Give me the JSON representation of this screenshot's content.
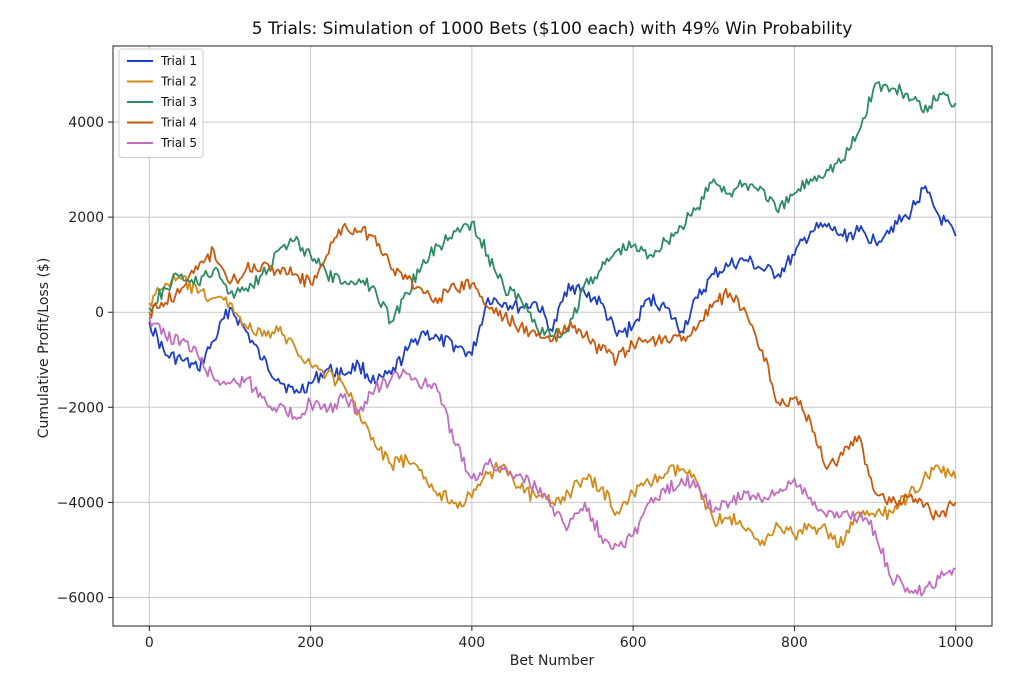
{
  "chart_data": {
    "type": "line",
    "title": "5 Trials: Simulation of 1000 Bets ($100 each) with 49% Win Probability",
    "xlabel": "Bet Number",
    "ylabel": "Cumulative Profit/Loss ($)",
    "xlim": [
      -45,
      1045
    ],
    "ylim": [
      -6600,
      5600
    ],
    "x_ticks": [
      0,
      200,
      400,
      600,
      800,
      1000
    ],
    "y_ticks": [
      -6000,
      -4000,
      -2000,
      0,
      2000,
      4000
    ],
    "x_tick_labels": [
      "0",
      "200",
      "400",
      "600",
      "800",
      "1000"
    ],
    "y_tick_labels": [
      "−6000",
      "−4000",
      "−2000",
      "0",
      "2000",
      "4000"
    ],
    "grid": true,
    "legend_position": "top-left",
    "series": [
      {
        "name": "Trial 1",
        "color": "#1f3fc0",
        "x": [
          0,
          20,
          40,
          60,
          80,
          100,
          120,
          140,
          160,
          180,
          200,
          220,
          240,
          260,
          280,
          300,
          320,
          340,
          360,
          380,
          400,
          420,
          440,
          460,
          480,
          500,
          520,
          540,
          560,
          580,
          600,
          620,
          640,
          660,
          680,
          700,
          720,
          740,
          760,
          780,
          800,
          820,
          840,
          860,
          880,
          900,
          920,
          940,
          960,
          980,
          1000
        ],
        "values": [
          -200,
          -900,
          -1000,
          -1200,
          -600,
          100,
          -400,
          -1000,
          -1400,
          -1700,
          -1500,
          -1200,
          -1300,
          -1100,
          -1500,
          -1300,
          -800,
          -400,
          -600,
          -700,
          -900,
          300,
          200,
          100,
          200,
          -400,
          600,
          400,
          200,
          -500,
          -300,
          300,
          100,
          -400,
          300,
          800,
          1000,
          1100,
          900,
          800,
          1200,
          1700,
          1800,
          1600,
          1700,
          1500,
          1800,
          2000,
          2600,
          2000,
          1600
        ]
      },
      {
        "name": "Trial 2",
        "color": "#d08c1a",
        "x": [
          0,
          20,
          40,
          60,
          80,
          100,
          120,
          140,
          160,
          180,
          200,
          220,
          240,
          260,
          280,
          300,
          320,
          340,
          360,
          380,
          400,
          420,
          440,
          460,
          480,
          500,
          520,
          540,
          560,
          580,
          600,
          620,
          640,
          660,
          680,
          700,
          720,
          740,
          760,
          780,
          800,
          820,
          840,
          860,
          880,
          900,
          920,
          940,
          960,
          980,
          1000
        ],
        "values": [
          200,
          600,
          700,
          400,
          300,
          200,
          -300,
          -500,
          -400,
          -700,
          -1100,
          -1300,
          -1500,
          -2100,
          -2800,
          -3200,
          -3100,
          -3500,
          -3800,
          -4000,
          -3900,
          -3400,
          -3200,
          -3700,
          -3900,
          -4000,
          -3800,
          -3500,
          -3700,
          -4200,
          -3800,
          -3600,
          -3400,
          -3300,
          -3600,
          -4400,
          -4300,
          -4600,
          -4800,
          -4500,
          -4700,
          -4500,
          -4600,
          -4900,
          -4200,
          -4300,
          -4200,
          -3900,
          -3500,
          -3300,
          -3500
        ]
      },
      {
        "name": "Trial 3",
        "color": "#2e8b62",
        "x": [
          0,
          20,
          40,
          60,
          80,
          100,
          120,
          140,
          160,
          180,
          200,
          220,
          240,
          260,
          280,
          300,
          320,
          340,
          360,
          380,
          400,
          420,
          440,
          460,
          480,
          500,
          520,
          540,
          560,
          580,
          600,
          620,
          640,
          660,
          680,
          700,
          720,
          740,
          760,
          780,
          800,
          820,
          840,
          860,
          880,
          900,
          920,
          940,
          960,
          980,
          1000
        ],
        "values": [
          100,
          500,
          800,
          600,
          900,
          400,
          500,
          800,
          1300,
          1500,
          1200,
          800,
          600,
          700,
          500,
          -200,
          400,
          1100,
          1400,
          1700,
          1900,
          1200,
          500,
          300,
          -300,
          -500,
          -400,
          600,
          900,
          1300,
          1400,
          1200,
          1500,
          1800,
          2200,
          2800,
          2500,
          2700,
          2600,
          2100,
          2500,
          2800,
          3000,
          3200,
          3800,
          4800,
          4700,
          4600,
          4200,
          4600,
          4400
        ]
      },
      {
        "name": "Trial 4",
        "color": "#c65a0e",
        "x": [
          0,
          20,
          40,
          60,
          80,
          100,
          120,
          140,
          160,
          180,
          200,
          220,
          240,
          260,
          280,
          300,
          320,
          340,
          360,
          380,
          400,
          420,
          440,
          460,
          480,
          500,
          520,
          540,
          560,
          580,
          600,
          620,
          640,
          660,
          680,
          700,
          720,
          740,
          760,
          780,
          800,
          820,
          840,
          860,
          880,
          900,
          920,
          940,
          960,
          980,
          1000
        ],
        "values": [
          0,
          200,
          500,
          900,
          1300,
          600,
          900,
          1000,
          900,
          800,
          600,
          1200,
          1800,
          1700,
          1600,
          900,
          700,
          400,
          300,
          500,
          600,
          100,
          -100,
          -300,
          -500,
          -600,
          -300,
          -500,
          -800,
          -1000,
          -700,
          -600,
          -500,
          -600,
          -300,
          200,
          400,
          0,
          -800,
          -1900,
          -1800,
          -2300,
          -3300,
          -3000,
          -2600,
          -3800,
          -4000,
          -3900,
          -4100,
          -4300,
          -4000
        ]
      },
      {
        "name": "Trial 5",
        "color": "#c06ec0",
        "x": [
          0,
          20,
          40,
          60,
          80,
          100,
          120,
          140,
          160,
          180,
          200,
          220,
          240,
          260,
          280,
          300,
          320,
          340,
          360,
          380,
          400,
          420,
          440,
          460,
          480,
          500,
          520,
          540,
          560,
          580,
          600,
          620,
          640,
          660,
          680,
          700,
          720,
          740,
          760,
          780,
          800,
          820,
          840,
          860,
          880,
          900,
          920,
          940,
          960,
          980,
          1000
        ],
        "values": [
          -100,
          -500,
          -600,
          -900,
          -1400,
          -1500,
          -1400,
          -1800,
          -2000,
          -2200,
          -1900,
          -2100,
          -1800,
          -2100,
          -1600,
          -1400,
          -1300,
          -1500,
          -1700,
          -2800,
          -3500,
          -3200,
          -3300,
          -3400,
          -3700,
          -4100,
          -4500,
          -4000,
          -4700,
          -4900,
          -4700,
          -4000,
          -3800,
          -3500,
          -3600,
          -4200,
          -4000,
          -3800,
          -4000,
          -3800,
          -3500,
          -3900,
          -4300,
          -4200,
          -4300,
          -4600,
          -5600,
          -5800,
          -5900,
          -5600,
          -5400
        ]
      }
    ]
  }
}
